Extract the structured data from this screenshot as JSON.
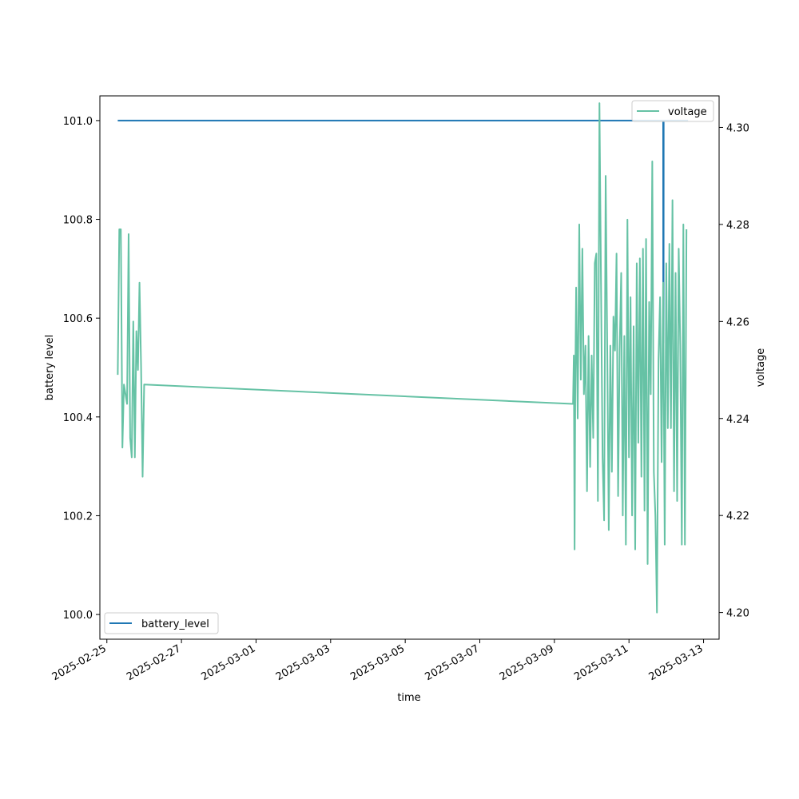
{
  "chart_data": {
    "type": "line",
    "xlabel": "time",
    "ylabel_left": "battery level",
    "ylabel_right": "voltage",
    "x_ticks": [
      "2025-02-25",
      "2025-02-27",
      "2025-03-01",
      "2025-03-03",
      "2025-03-05",
      "2025-03-07",
      "2025-03-09",
      "2025-03-11",
      "2025-03-13"
    ],
    "xlim": [
      "2025-02-24T19:30",
      "2025-03-13T10:00"
    ],
    "y_left_ticks": [
      "100.0",
      "100.2",
      "100.4",
      "100.6",
      "100.8",
      "101.0"
    ],
    "y_left_lim": [
      99.95,
      101.05
    ],
    "y_right_ticks": [
      "4.20",
      "4.22",
      "4.24",
      "4.26",
      "4.28",
      "4.30"
    ],
    "y_right_lim": [
      4.1945,
      4.3065
    ],
    "series": [
      {
        "name": "battery_level",
        "axis": "left",
        "color": "#1f77b4",
        "legend_position": "lower left",
        "points": [
          [
            "2025-02-25T07:00",
            101.0
          ],
          [
            "2025-03-11T22:00",
            101.0
          ],
          [
            "2025-03-11T22:05",
            100.5
          ],
          [
            "2025-03-11T22:10",
            101.0
          ],
          [
            "2025-03-11T22:15",
            100.55
          ],
          [
            "2025-03-11T22:20",
            101.0
          ],
          [
            "2025-03-12T14:00",
            101.0
          ]
        ]
      },
      {
        "name": "voltage",
        "axis": "right",
        "color": "#66c2a5",
        "legend_position": "upper right",
        "points": [
          [
            "2025-02-25T07:00",
            4.249
          ],
          [
            "2025-02-25T08:00",
            4.279
          ],
          [
            "2025-02-25T09:00",
            4.279
          ],
          [
            "2025-02-25T10:00",
            4.234
          ],
          [
            "2025-02-25T11:00",
            4.247
          ],
          [
            "2025-02-25T12:00",
            4.245
          ],
          [
            "2025-02-25T13:00",
            4.243
          ],
          [
            "2025-02-25T14:00",
            4.278
          ],
          [
            "2025-02-25T15:00",
            4.236
          ],
          [
            "2025-02-25T16:00",
            4.232
          ],
          [
            "2025-02-25T17:00",
            4.26
          ],
          [
            "2025-02-25T18:00",
            4.232
          ],
          [
            "2025-02-25T19:00",
            4.258
          ],
          [
            "2025-02-25T20:00",
            4.25
          ],
          [
            "2025-02-25T21:00",
            4.268
          ],
          [
            "2025-02-25T22:00",
            4.251
          ],
          [
            "2025-02-25T23:00",
            4.228
          ],
          [
            "2025-02-26T00:00",
            4.247
          ],
          [
            "2025-03-09T12:00",
            4.243
          ],
          [
            "2025-03-09T12:30",
            4.253
          ],
          [
            "2025-03-09T13:00",
            4.213
          ],
          [
            "2025-03-09T13:30",
            4.25
          ],
          [
            "2025-03-09T14:00",
            4.267
          ],
          [
            "2025-03-09T15:00",
            4.24
          ],
          [
            "2025-03-09T16:00",
            4.28
          ],
          [
            "2025-03-09T17:00",
            4.248
          ],
          [
            "2025-03-09T18:00",
            4.275
          ],
          [
            "2025-03-09T19:00",
            4.245
          ],
          [
            "2025-03-09T20:00",
            4.255
          ],
          [
            "2025-03-09T21:00",
            4.225
          ],
          [
            "2025-03-09T22:00",
            4.257
          ],
          [
            "2025-03-09T23:00",
            4.23
          ],
          [
            "2025-03-10T00:00",
            4.253
          ],
          [
            "2025-03-10T01:00",
            4.236
          ],
          [
            "2025-03-10T02:00",
            4.272
          ],
          [
            "2025-03-10T03:00",
            4.274
          ],
          [
            "2025-03-10T04:00",
            4.223
          ],
          [
            "2025-03-10T05:00",
            4.305
          ],
          [
            "2025-03-10T06:00",
            4.268
          ],
          [
            "2025-03-10T07:00",
            4.232
          ],
          [
            "2025-03-10T08:00",
            4.219
          ],
          [
            "2025-03-10T09:00",
            4.29
          ],
          [
            "2025-03-10T10:00",
            4.255
          ],
          [
            "2025-03-10T11:00",
            4.217
          ],
          [
            "2025-03-10T12:00",
            4.255
          ],
          [
            "2025-03-10T13:00",
            4.229
          ],
          [
            "2025-03-10T14:00",
            4.261
          ],
          [
            "2025-03-10T15:00",
            4.254
          ],
          [
            "2025-03-10T16:00",
            4.274
          ],
          [
            "2025-03-10T17:00",
            4.224
          ],
          [
            "2025-03-10T18:00",
            4.254
          ],
          [
            "2025-03-10T19:00",
            4.27
          ],
          [
            "2025-03-10T20:00",
            4.22
          ],
          [
            "2025-03-10T21:00",
            4.257
          ],
          [
            "2025-03-10T22:00",
            4.214
          ],
          [
            "2025-03-10T23:00",
            4.281
          ],
          [
            "2025-03-11T00:00",
            4.232
          ],
          [
            "2025-03-11T01:00",
            4.265
          ],
          [
            "2025-03-11T02:00",
            4.22
          ],
          [
            "2025-03-11T03:00",
            4.259
          ],
          [
            "2025-03-11T04:00",
            4.213
          ],
          [
            "2025-03-11T05:00",
            4.272
          ],
          [
            "2025-03-11T06:00",
            4.235
          ],
          [
            "2025-03-11T07:00",
            4.273
          ],
          [
            "2025-03-11T08:00",
            4.228
          ],
          [
            "2025-03-11T09:00",
            4.275
          ],
          [
            "2025-03-11T10:00",
            4.221
          ],
          [
            "2025-03-11T11:00",
            4.277
          ],
          [
            "2025-03-11T12:00",
            4.21
          ],
          [
            "2025-03-11T13:00",
            4.264
          ],
          [
            "2025-03-11T14:00",
            4.245
          ],
          [
            "2025-03-11T15:00",
            4.293
          ],
          [
            "2025-03-11T16:00",
            4.229
          ],
          [
            "2025-03-11T17:00",
            4.22
          ],
          [
            "2025-03-11T18:00",
            4.2
          ],
          [
            "2025-03-11T19:00",
            4.252
          ],
          [
            "2025-03-11T20:00",
            4.265
          ],
          [
            "2025-03-11T21:00",
            4.231
          ],
          [
            "2025-03-11T22:00",
            4.268
          ],
          [
            "2025-03-11T23:00",
            4.214
          ],
          [
            "2025-03-12T00:00",
            4.272
          ],
          [
            "2025-03-12T01:00",
            4.238
          ],
          [
            "2025-03-12T02:00",
            4.276
          ],
          [
            "2025-03-12T03:00",
            4.238
          ],
          [
            "2025-03-12T04:00",
            4.285
          ],
          [
            "2025-03-12T05:00",
            4.225
          ],
          [
            "2025-03-12T06:00",
            4.27
          ],
          [
            "2025-03-12T07:00",
            4.223
          ],
          [
            "2025-03-12T08:00",
            4.275
          ],
          [
            "2025-03-12T09:00",
            4.255
          ],
          [
            "2025-03-12T10:00",
            4.214
          ],
          [
            "2025-03-12T11:00",
            4.28
          ],
          [
            "2025-03-12T12:00",
            4.214
          ],
          [
            "2025-03-12T13:00",
            4.279
          ]
        ]
      }
    ]
  }
}
